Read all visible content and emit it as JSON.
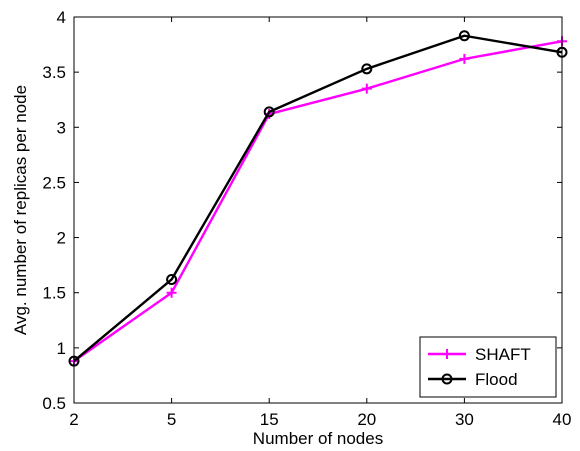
{
  "chart_data": {
    "type": "line",
    "title": "",
    "xlabel": "Number of nodes",
    "ylabel": "Avg. number of replicas per node",
    "categories": [
      "2",
      "5",
      "15",
      "20",
      "30",
      "40"
    ],
    "ylim": [
      0.5,
      4
    ],
    "yticks": [
      "0.5",
      "1",
      "1.5",
      "2",
      "2.5",
      "3",
      "3.5",
      "4"
    ],
    "grid": false,
    "legend_position": "bottom-right",
    "series": [
      {
        "name": "SHAFT",
        "color": "#ff00ff",
        "marker": "plus",
        "values": [
          0.88,
          1.5,
          3.12,
          3.35,
          3.62,
          3.78
        ]
      },
      {
        "name": "Flood",
        "color": "#000000",
        "marker": "circle",
        "values": [
          0.88,
          1.62,
          3.14,
          3.53,
          3.83,
          3.68
        ]
      }
    ]
  }
}
